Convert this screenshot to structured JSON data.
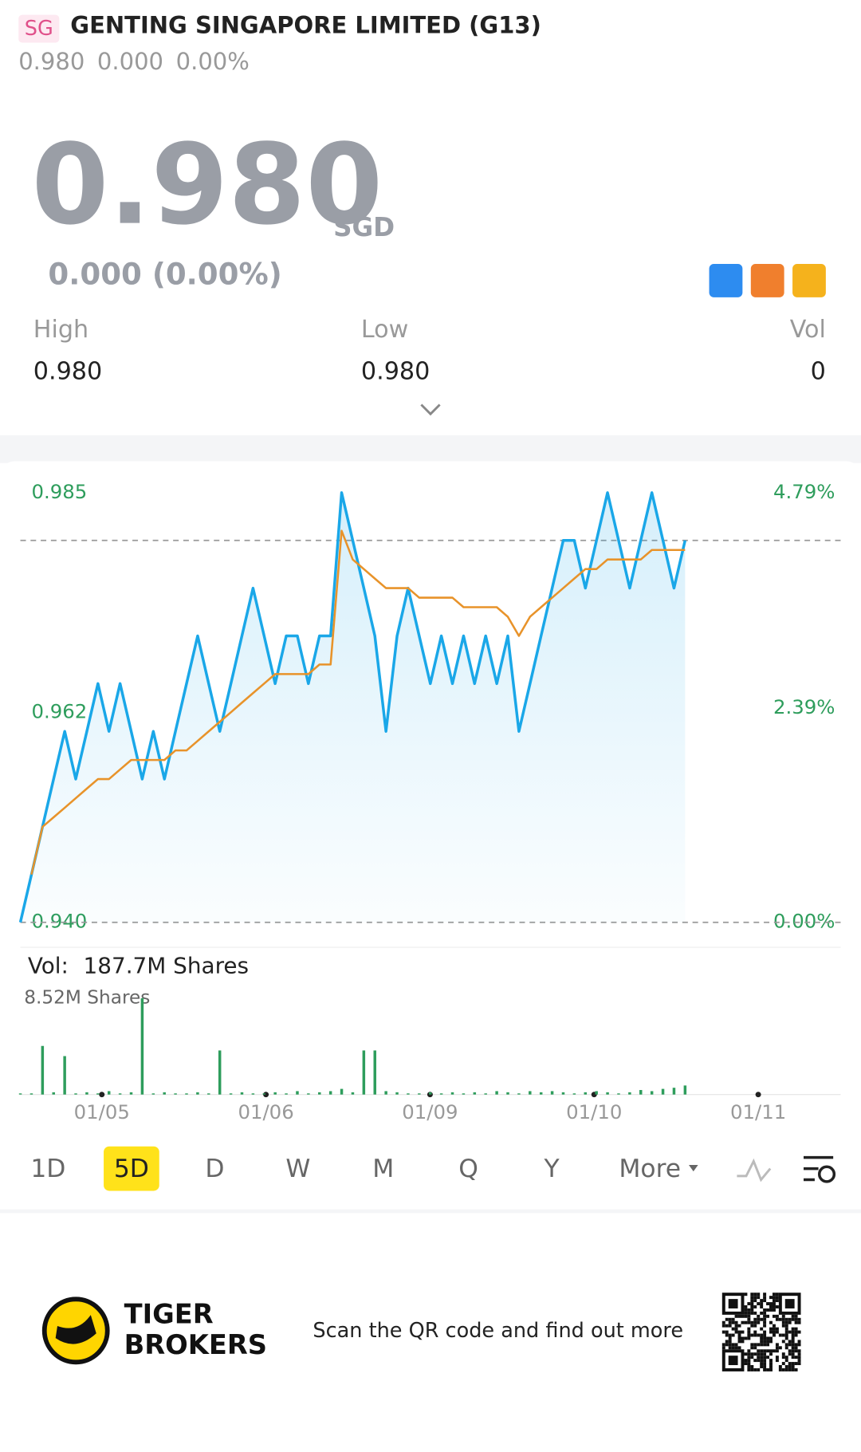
{
  "header": {
    "badge": "SG",
    "title": "GENTING SINGAPORE LIMITED (G13)",
    "quote": [
      "0.980",
      "0.000",
      "0.00%"
    ]
  },
  "price": {
    "last": "0.980",
    "currency": "SGD",
    "change": "0.000 (0.00%)"
  },
  "stats": [
    {
      "label": "High",
      "value": "0.980"
    },
    {
      "label": "Low",
      "value": "0.980"
    },
    {
      "label": "Vol",
      "value": "0"
    }
  ],
  "chart_data": {
    "type": "line",
    "ylim": [
      0.94,
      0.985
    ],
    "yticks": [
      0.985,
      0.962,
      {
        "value": 0.94,
        "label": "0.940"
      }
    ],
    "y2lim": [
      0,
      4.79
    ],
    "y2ticks": [
      {
        "value": 4.79,
        "label": "4.79%"
      },
      {
        "value": 2.39,
        "label": "2.39%"
      },
      {
        "value": 0,
        "label": "0.00%"
      }
    ],
    "reference_line": 0.98,
    "x_labels": [
      "01/05",
      "01/06",
      "01/09",
      "01/10",
      "01/11"
    ],
    "series": [
      {
        "color": "#1aa7e8",
        "values": [
          0.94,
          0.945,
          0.95,
          0.955,
          0.96,
          0.955,
          0.96,
          0.965,
          0.96,
          0.965,
          0.96,
          0.955,
          0.96,
          0.955,
          0.96,
          0.965,
          0.97,
          0.965,
          0.96,
          0.965,
          0.97,
          0.975,
          0.97,
          0.965,
          0.97,
          0.97,
          0.965,
          0.97,
          0.97,
          0.985,
          0.98,
          0.975,
          0.97,
          0.96,
          0.97,
          0.975,
          0.97,
          0.965,
          0.97,
          0.965,
          0.97,
          0.965,
          0.97,
          0.965,
          0.97,
          0.96,
          0.965,
          0.97,
          0.975,
          0.98,
          0.98,
          0.975,
          0.98,
          0.985,
          0.98,
          0.975,
          0.98,
          0.985,
          0.98,
          0.975,
          0.98
        ]
      },
      {
        "color": "#e8932a",
        "values": [
          null,
          0.945,
          0.95,
          0.951,
          0.952,
          0.953,
          0.954,
          0.955,
          0.955,
          0.956,
          0.957,
          0.957,
          0.957,
          0.957,
          0.958,
          0.958,
          0.959,
          0.96,
          0.961,
          0.962,
          0.963,
          0.964,
          0.965,
          0.966,
          0.966,
          0.966,
          0.966,
          0.967,
          0.967,
          0.981,
          0.978,
          0.977,
          0.976,
          0.975,
          0.975,
          0.975,
          0.974,
          0.974,
          0.974,
          0.974,
          0.973,
          0.973,
          0.973,
          0.973,
          0.972,
          0.97,
          0.972,
          0.973,
          0.974,
          0.975,
          0.976,
          0.977,
          0.977,
          0.978,
          0.978,
          0.978,
          0.978,
          0.979,
          0.979,
          0.979,
          0.979
        ]
      }
    ],
    "volume": {
      "label": "Vol:",
      "total": "187.7M Shares",
      "color": "#2e9d5c",
      "ylim": [
        0,
        8.52
      ],
      "yticks": [
        {
          "value": 8.52,
          "label": "8.52M Shares"
        }
      ],
      "values": [
        0.1,
        0.1,
        4.3,
        0.2,
        3.4,
        0.1,
        0.2,
        0.1,
        0.3,
        0.1,
        0.2,
        8.52,
        0.1,
        0.2,
        0.1,
        0.1,
        0.2,
        0.1,
        3.9,
        0.1,
        0.2,
        0.1,
        0.1,
        0.2,
        0.1,
        0.3,
        0.1,
        0.2,
        0.3,
        0.5,
        0.2,
        3.9,
        3.9,
        0.3,
        0.2,
        0.1,
        0.1,
        0.2,
        0.1,
        0.2,
        0.1,
        0.2,
        0.1,
        0.3,
        0.2,
        0.1,
        0.3,
        0.2,
        0.3,
        0.2,
        0.1,
        0.2,
        0.3,
        0.2,
        0.1,
        0.2,
        0.4,
        0.3,
        0.5,
        0.6,
        0.8
      ]
    }
  },
  "tabs": [
    "1D",
    "5D",
    "D",
    "W",
    "M",
    "Q",
    "Y",
    "More"
  ],
  "active_tab": 1,
  "footer": {
    "brand": [
      "TIGER",
      "BROKERS"
    ],
    "cta": "Scan the QR code and find out more"
  }
}
